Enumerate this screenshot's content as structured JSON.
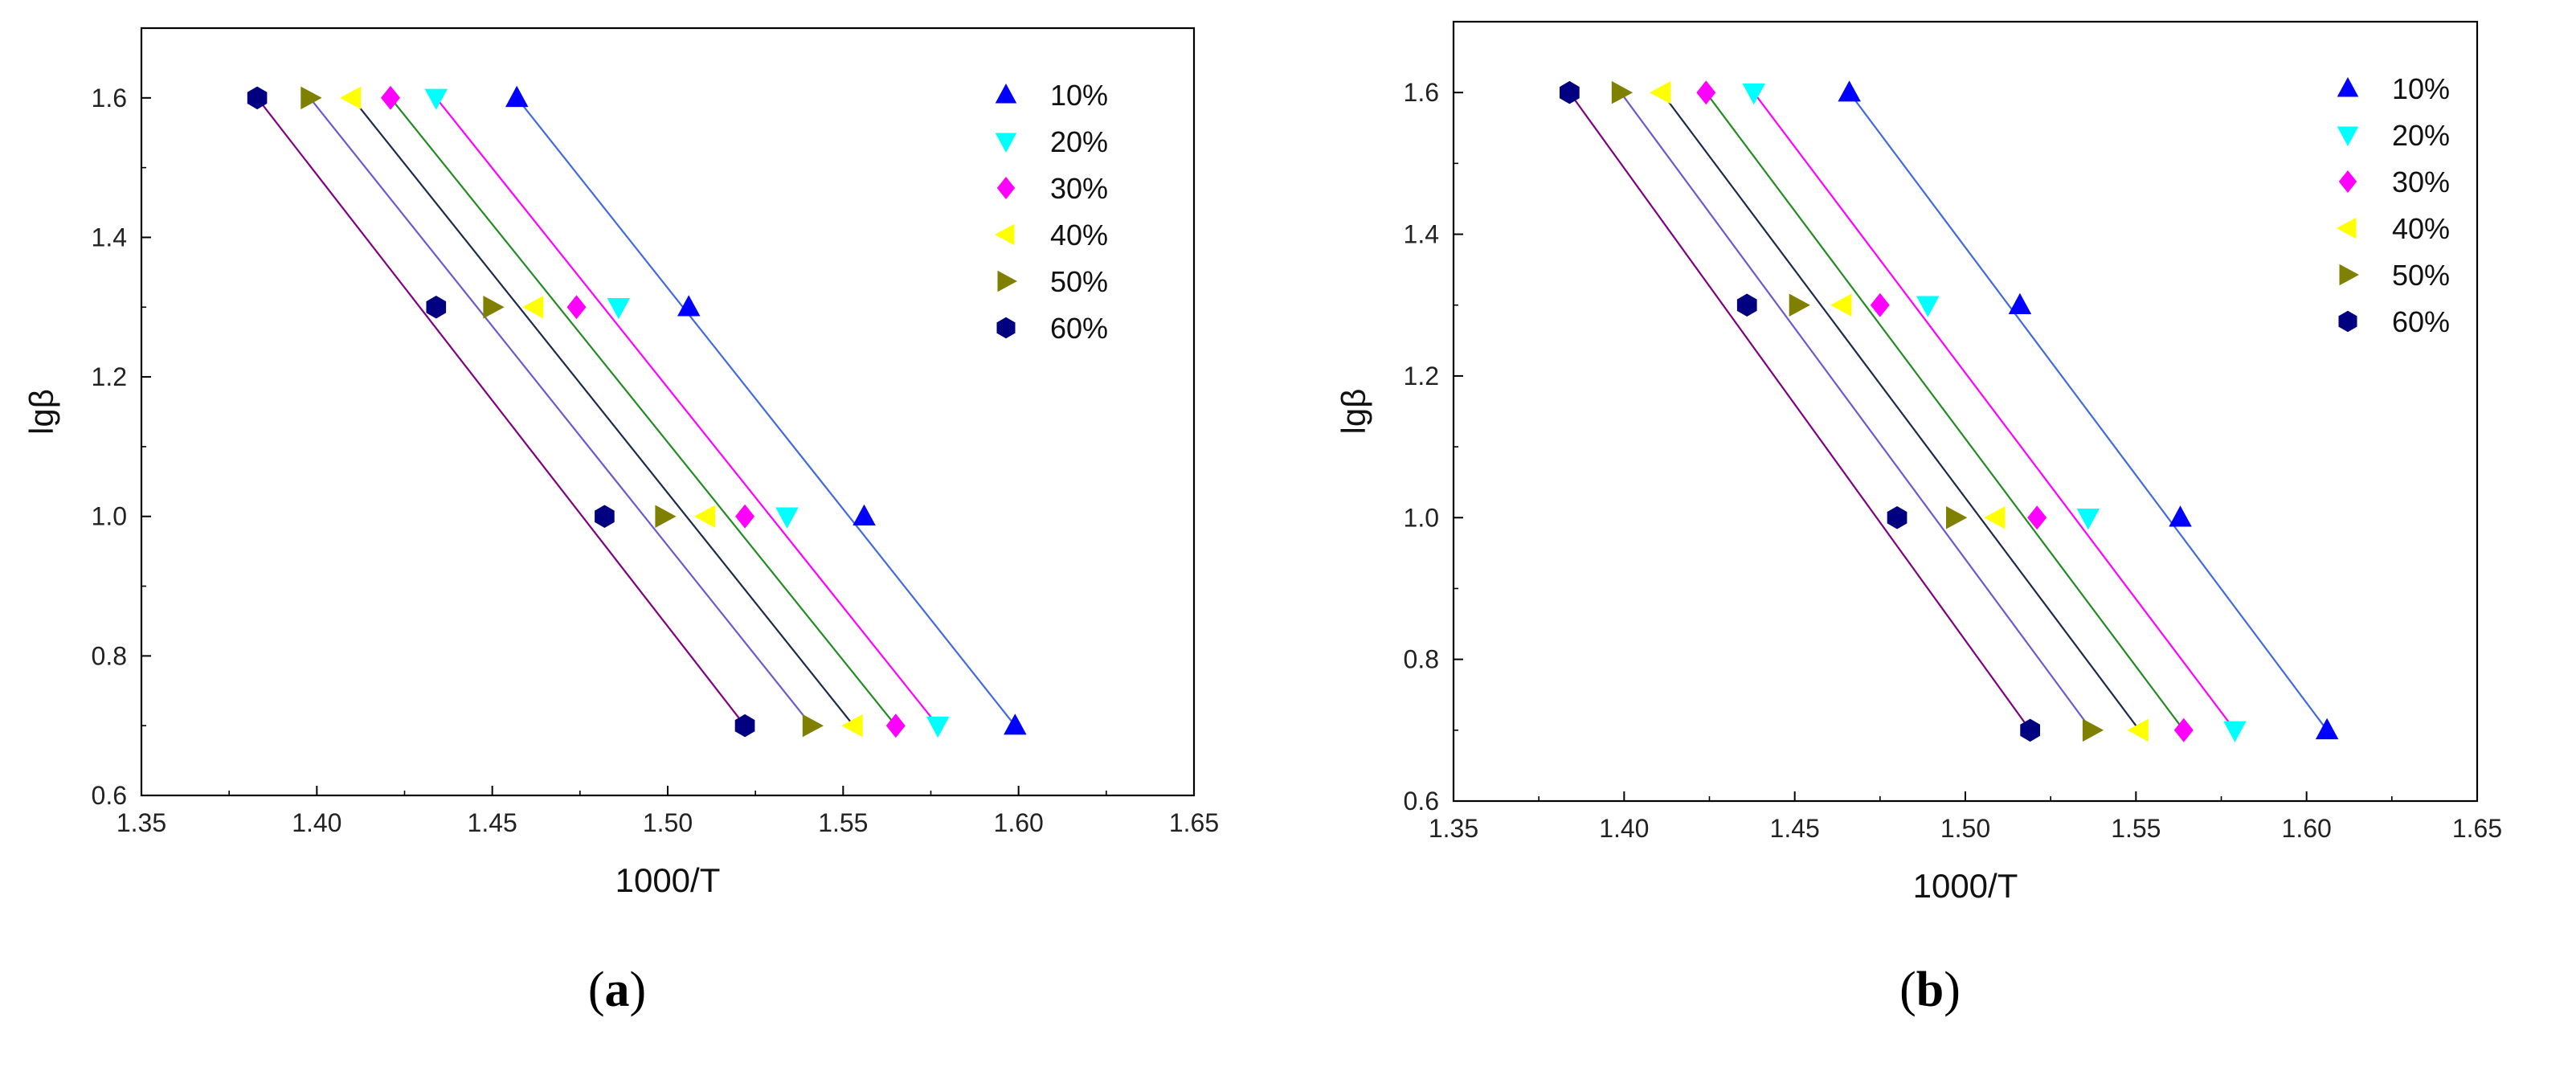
{
  "chart_data": [
    {
      "panel_label_open": "(",
      "panel_label": "a",
      "panel_label_close": ")",
      "type": "scatter",
      "xlabel": "1000/T",
      "ylabel": "lgβ",
      "xlim": [
        1.35,
        1.65
      ],
      "ylim": [
        0.6,
        1.7
      ],
      "xticks": [
        "1.35",
        "1.40",
        "1.45",
        "1.50",
        "1.55",
        "1.60",
        "1.65"
      ],
      "yticks": [
        "0.6",
        "0.8",
        "1.0",
        "1.2",
        "1.4",
        "1.6"
      ],
      "legend_position": "top-right",
      "series": [
        {
          "name": "10%",
          "marker": "triangle-up",
          "color": "#0000FF",
          "x": [
            1.457,
            1.506,
            1.556,
            1.599
          ],
          "y": [
            1.6,
            1.3,
            1.0,
            0.7
          ]
        },
        {
          "name": "20%",
          "marker": "triangle-down",
          "color": "#00FFFF",
          "x": [
            1.434,
            1.486,
            1.534,
            1.577
          ],
          "y": [
            1.6,
            1.3,
            1.0,
            0.7
          ]
        },
        {
          "name": "30%",
          "marker": "diamond",
          "color": "#FF00FF",
          "x": [
            1.421,
            1.474,
            1.522,
            1.565
          ],
          "y": [
            1.6,
            1.3,
            1.0,
            0.7
          ]
        },
        {
          "name": "40%",
          "marker": "triangle-left",
          "color": "#FFFF00",
          "x": [
            1.41,
            1.462,
            1.511,
            1.553
          ],
          "y": [
            1.6,
            1.3,
            1.0,
            0.7
          ]
        },
        {
          "name": "50%",
          "marker": "triangle-right",
          "color": "#808000",
          "x": [
            1.398,
            1.45,
            1.499,
            1.541
          ],
          "y": [
            1.6,
            1.3,
            1.0,
            0.7
          ]
        },
        {
          "name": "60%",
          "marker": "hexagon",
          "color": "#000080",
          "x": [
            1.383,
            1.434,
            1.482,
            1.522
          ],
          "y": [
            1.6,
            1.3,
            1.0,
            0.7
          ]
        }
      ],
      "fit_lines": [
        {
          "series": "10%",
          "color": "#4169E1",
          "x": [
            1.457,
            1.599
          ],
          "y": [
            1.6,
            0.7
          ]
        },
        {
          "series": "20%",
          "color": "#FF00FF",
          "x": [
            1.434,
            1.577
          ],
          "y": [
            1.6,
            0.7
          ]
        },
        {
          "series": "30%",
          "color": "#228B22",
          "x": [
            1.421,
            1.565
          ],
          "y": [
            1.6,
            0.7
          ]
        },
        {
          "series": "40%",
          "color": "#1C2B4B",
          "x": [
            1.41,
            1.553
          ],
          "y": [
            1.6,
            0.7
          ]
        },
        {
          "series": "50%",
          "color": "#6A5ACD",
          "x": [
            1.398,
            1.541
          ],
          "y": [
            1.6,
            0.7
          ]
        },
        {
          "series": "60%",
          "color": "#800080",
          "x": [
            1.383,
            1.522
          ],
          "y": [
            1.6,
            0.7
          ]
        }
      ]
    },
    {
      "panel_label_open": "(",
      "panel_label": "b",
      "panel_label_close": ")",
      "type": "scatter",
      "xlabel": "1000/T",
      "ylabel": "lgβ",
      "xlim": [
        1.35,
        1.65
      ],
      "ylim": [
        0.6,
        1.7
      ],
      "xticks": [
        "1.35",
        "1.40",
        "1.45",
        "1.50",
        "1.55",
        "1.60",
        "1.65"
      ],
      "yticks": [
        "0.6",
        "0.8",
        "1.0",
        "1.2",
        "1.4",
        "1.6"
      ],
      "legend_position": "top-right",
      "series": [
        {
          "name": "10%",
          "marker": "triangle-up",
          "color": "#0000FF",
          "x": [
            1.466,
            1.516,
            1.563,
            1.606
          ],
          "y": [
            1.6,
            1.3,
            1.0,
            0.7
          ]
        },
        {
          "name": "20%",
          "marker": "triangle-down",
          "color": "#00FFFF",
          "x": [
            1.438,
            1.489,
            1.536,
            1.579
          ],
          "y": [
            1.6,
            1.3,
            1.0,
            0.7
          ]
        },
        {
          "name": "30%",
          "marker": "diamond",
          "color": "#FF00FF",
          "x": [
            1.424,
            1.475,
            1.521,
            1.564
          ],
          "y": [
            1.6,
            1.3,
            1.0,
            0.7
          ]
        },
        {
          "name": "40%",
          "marker": "triangle-left",
          "color": "#FFFF00",
          "x": [
            1.411,
            1.464,
            1.509,
            1.551
          ],
          "y": [
            1.6,
            1.3,
            1.0,
            0.7
          ]
        },
        {
          "name": "50%",
          "marker": "triangle-right",
          "color": "#808000",
          "x": [
            1.399,
            1.451,
            1.497,
            1.537
          ],
          "y": [
            1.6,
            1.3,
            1.0,
            0.7
          ]
        },
        {
          "name": "60%",
          "marker": "hexagon",
          "color": "#000080",
          "x": [
            1.384,
            1.436,
            1.48,
            1.519
          ],
          "y": [
            1.6,
            1.3,
            1.0,
            0.7
          ]
        }
      ],
      "fit_lines": [
        {
          "series": "10%",
          "color": "#4169E1",
          "x": [
            1.466,
            1.606
          ],
          "y": [
            1.6,
            0.7
          ]
        },
        {
          "series": "20%",
          "color": "#FF00FF",
          "x": [
            1.438,
            1.579
          ],
          "y": [
            1.6,
            0.7
          ]
        },
        {
          "series": "30%",
          "color": "#228B22",
          "x": [
            1.424,
            1.564
          ],
          "y": [
            1.6,
            0.7
          ]
        },
        {
          "series": "40%",
          "color": "#1C2B4B",
          "x": [
            1.411,
            1.551
          ],
          "y": [
            1.6,
            0.7
          ]
        },
        {
          "series": "50%",
          "color": "#6A5ACD",
          "x": [
            1.399,
            1.537
          ],
          "y": [
            1.6,
            0.7
          ]
        },
        {
          "series": "60%",
          "color": "#800080",
          "x": [
            1.384,
            1.519
          ],
          "y": [
            1.6,
            0.7
          ]
        }
      ]
    }
  ]
}
